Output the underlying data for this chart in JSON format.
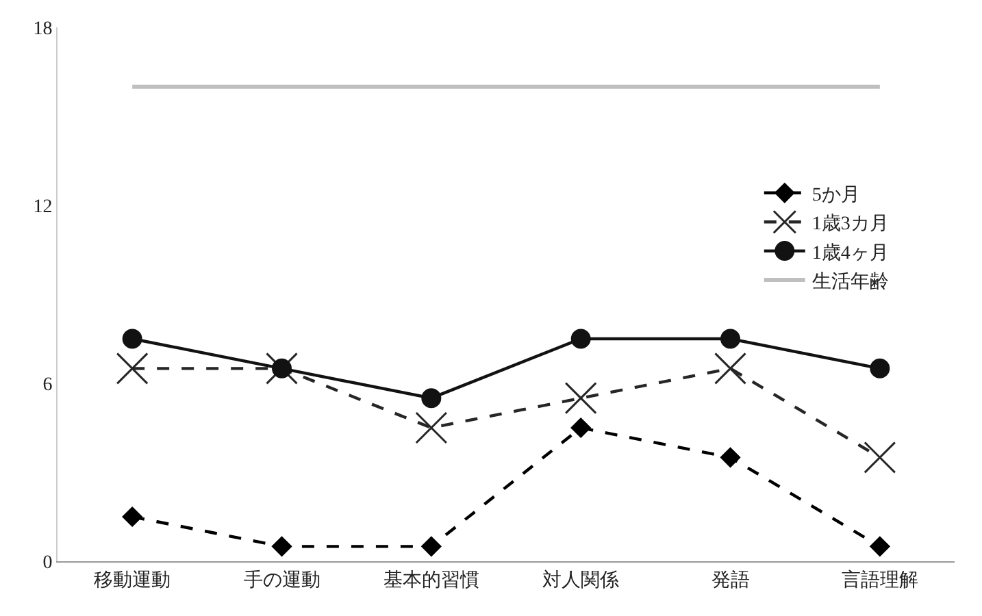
{
  "chart_data": {
    "type": "line",
    "categories": [
      "移動運動",
      "手の運動",
      "基本的習慣",
      "対人関係",
      "発語",
      "言語理解"
    ],
    "ylim": [
      0,
      18
    ],
    "yticks": [
      0,
      6,
      12,
      18
    ],
    "grid": false,
    "legend": "top right",
    "series": [
      {
        "name": "5か月",
        "color": "#000000",
        "values": [
          1.5,
          0.5,
          0.5,
          4.5,
          3.5,
          0.5
        ],
        "marker": "diamond",
        "line_style": "dashed"
      },
      {
        "name": "1歳3カ月",
        "color": "#262626",
        "values": [
          6.5,
          6.5,
          4.5,
          5.5,
          6.5,
          3.5
        ],
        "marker": "cross",
        "line_style": "dashed"
      },
      {
        "name": "1歳4ヶ月",
        "color": "#121212",
        "values": [
          7.5,
          6.5,
          5.5,
          7.5,
          7.5,
          6.5
        ],
        "marker": "circle",
        "line_style": "solid"
      },
      {
        "name": "生活年齢",
        "color": "#bfbfbf",
        "values": [
          16,
          16,
          16,
          16,
          16,
          16
        ],
        "marker": "none",
        "line_style": "solid"
      }
    ]
  }
}
